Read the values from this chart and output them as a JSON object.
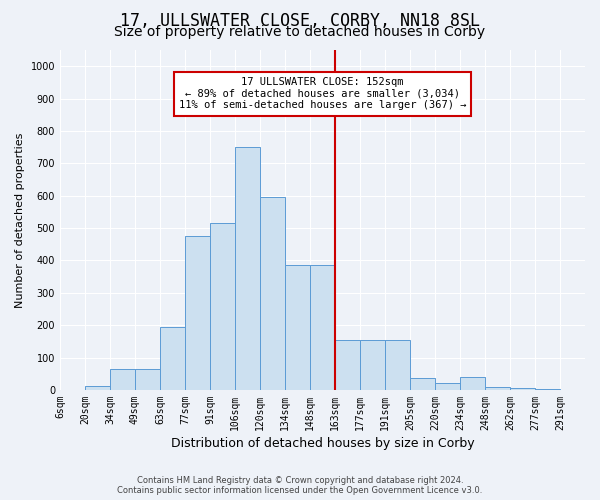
{
  "title": "17, ULLSWATER CLOSE, CORBY, NN18 8SL",
  "subtitle": "Size of property relative to detached houses in Corby",
  "xlabel": "Distribution of detached houses by size in Corby",
  "ylabel": "Number of detached properties",
  "footer_line1": "Contains HM Land Registry data © Crown copyright and database right 2024.",
  "footer_line2": "Contains public sector information licensed under the Open Government Licence v3.0.",
  "categories": [
    "6sqm",
    "20sqm",
    "34sqm",
    "49sqm",
    "63sqm",
    "77sqm",
    "91sqm",
    "106sqm",
    "120sqm",
    "134sqm",
    "148sqm",
    "163sqm",
    "177sqm",
    "191sqm",
    "205sqm",
    "220sqm",
    "234sqm",
    "248sqm",
    "262sqm",
    "277sqm",
    "291sqm"
  ],
  "values": [
    0,
    12,
    65,
    65,
    195,
    475,
    515,
    750,
    595,
    385,
    385,
    155,
    155,
    155,
    38,
    22,
    40,
    10,
    5,
    2,
    0
  ],
  "bar_color": "#cce0f0",
  "bar_edge_color": "#5b9bd5",
  "vline_x_index": 10,
  "annotation_title": "17 ULLSWATER CLOSE: 152sqm",
  "annotation_line2": "← 89% of detached houses are smaller (3,034)",
  "annotation_line3": "11% of semi-detached houses are larger (367) →",
  "vline_color": "#cc0000",
  "annotation_box_color": "#cc0000",
  "ylim": [
    0,
    1050
  ],
  "yticks": [
    0,
    100,
    200,
    300,
    400,
    500,
    600,
    700,
    800,
    900,
    1000
  ],
  "bg_color": "#eef2f8",
  "grid_color": "#ffffff",
  "title_fontsize": 12,
  "subtitle_fontsize": 10,
  "xlabel_fontsize": 9,
  "ylabel_fontsize": 8,
  "tick_fontsize": 7
}
